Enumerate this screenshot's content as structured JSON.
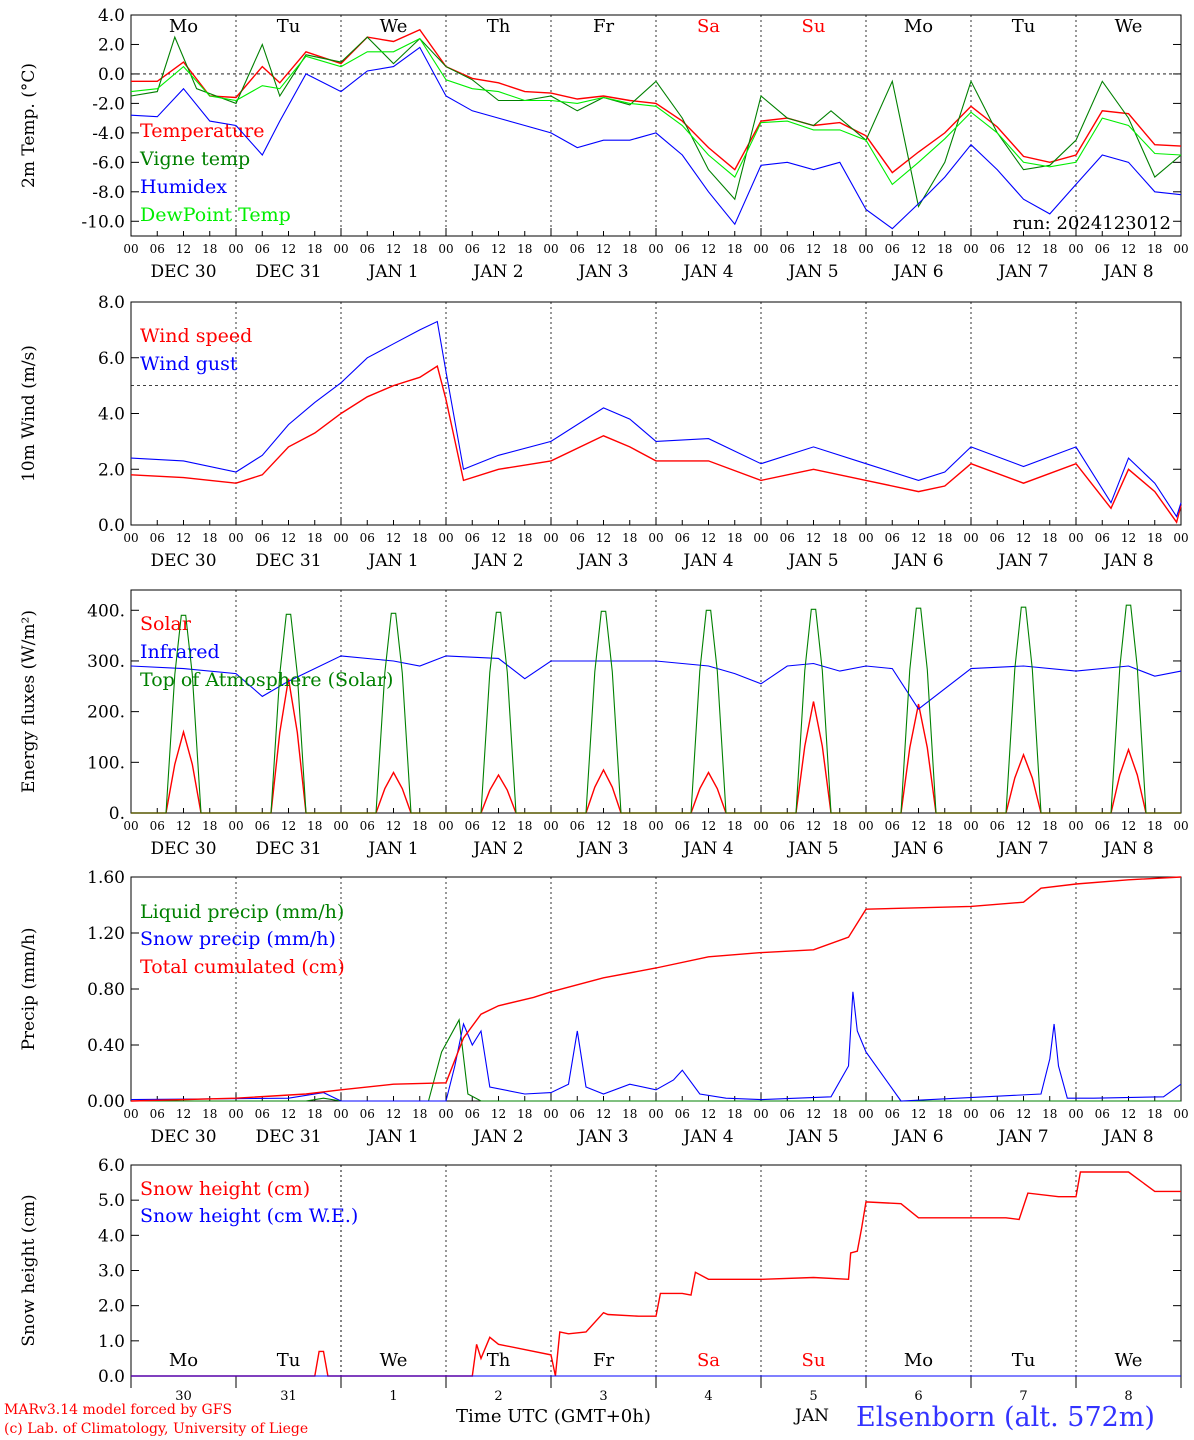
{
  "footer": {
    "model_line": "MARv3.14 model forced by GFS",
    "copyright_line": "(c) Lab. of Climatology, University of Liege",
    "xlabel": "Time UTC (GMT+0h)",
    "month": "JAN",
    "station": "Elsenborn (alt. 572m)"
  },
  "colors": {
    "red": "#ff0000",
    "green": "#008000",
    "blue": "#0000ff",
    "lightgreen": "#00ee00",
    "weekend": "#ff0000",
    "station": "#3333ff"
  },
  "chart_data": [
    {
      "type": "line",
      "ylabel": "2m Temp. (°C)",
      "ylim": [
        -11,
        4
      ],
      "yticks": [
        "4.0",
        "2.0",
        "0.0",
        "-2.0",
        "-4.0",
        "-6.0",
        "-8.0",
        "-10.0"
      ],
      "ytick_values": [
        4,
        2,
        0,
        -2,
        -4,
        -6,
        -8,
        -10
      ],
      "reference_line": 0,
      "x_unit": "hours since Dec 30 00 UTC",
      "xlim": [
        0,
        240
      ],
      "hour_ticks": [
        "00",
        "06",
        "12",
        "18"
      ],
      "date_labels": [
        "DEC 30",
        "DEC 31",
        "JAN 1",
        "JAN 2",
        "JAN 3",
        "JAN 4",
        "JAN 5",
        "JAN 6",
        "JAN 7",
        "JAN 8"
      ],
      "day_names": [
        "Mo",
        "Tu",
        "We",
        "Th",
        "Fr",
        "Sa",
        "Su",
        "Mo",
        "Tu",
        "We"
      ],
      "weekend_days": [
        5,
        6
      ],
      "annotation": "run: 2024123012",
      "series": [
        {
          "name": "Temperature",
          "color": "red",
          "x": [
            0,
            6,
            12,
            18,
            24,
            30,
            34,
            40,
            48,
            54,
            60,
            66,
            72,
            78,
            84,
            90,
            96,
            102,
            108,
            114,
            120,
            126,
            132,
            138,
            144,
            150,
            156,
            162,
            168,
            174,
            180,
            186,
            192,
            198,
            204,
            210,
            216,
            222,
            228,
            234,
            240
          ],
          "values": [
            -0.5,
            -0.5,
            0.8,
            -1.5,
            -1.6,
            0.5,
            -0.6,
            1.5,
            0.7,
            2.5,
            2.2,
            3.0,
            0.5,
            -0.3,
            -0.6,
            -1.2,
            -1.3,
            -1.7,
            -1.5,
            -1.8,
            -2.0,
            -3.2,
            -5.0,
            -6.5,
            -3.2,
            -3.0,
            -3.5,
            -3.3,
            -4.2,
            -6.7,
            -5.3,
            -4.0,
            -2.2,
            -3.6,
            -5.6,
            -6.0,
            -5.5,
            -2.5,
            -2.7,
            -4.8,
            -4.9
          ]
        },
        {
          "name": "Vigne temp",
          "color": "green",
          "x": [
            0,
            6,
            10,
            15,
            24,
            30,
            34,
            40,
            48,
            54,
            60,
            66,
            72,
            78,
            84,
            90,
            96,
            102,
            108,
            114,
            120,
            126,
            132,
            138,
            144,
            150,
            156,
            160,
            168,
            174,
            180,
            186,
            192,
            198,
            204,
            210,
            216,
            222,
            228,
            234,
            240
          ],
          "values": [
            -1.5,
            -1.2,
            2.5,
            -1.0,
            -2.0,
            2.0,
            -1.5,
            1.3,
            0.8,
            2.5,
            0.7,
            2.4,
            0.5,
            -0.4,
            -1.8,
            -1.8,
            -1.5,
            -2.5,
            -1.6,
            -2.1,
            -0.5,
            -3.0,
            -6.5,
            -8.5,
            -1.5,
            -3.0,
            -3.5,
            -2.5,
            -4.5,
            -0.5,
            -9.0,
            -6.0,
            -0.5,
            -4.0,
            -6.5,
            -6.2,
            -4.5,
            -0.5,
            -3.0,
            -7.0,
            -5.5
          ]
        },
        {
          "name": "Humidex",
          "color": "blue",
          "x": [
            0,
            6,
            12,
            18,
            24,
            30,
            34,
            40,
            48,
            54,
            60,
            66,
            72,
            78,
            84,
            90,
            96,
            102,
            108,
            114,
            120,
            126,
            132,
            138,
            144,
            150,
            156,
            162,
            168,
            174,
            180,
            186,
            192,
            198,
            204,
            210,
            216,
            222,
            228,
            234,
            240
          ],
          "values": [
            -2.8,
            -2.9,
            -1.0,
            -3.2,
            -3.5,
            -5.5,
            -3.2,
            0.0,
            -1.2,
            0.2,
            0.5,
            1.8,
            -1.5,
            -2.5,
            -3.0,
            -3.5,
            -4.0,
            -5.0,
            -4.5,
            -4.5,
            -4.0,
            -5.5,
            -8.0,
            -10.2,
            -6.2,
            -6.0,
            -6.5,
            -6.0,
            -9.2,
            -10.5,
            -8.8,
            -7.0,
            -4.8,
            -6.5,
            -8.5,
            -9.5,
            -7.5,
            -5.5,
            -6.0,
            -8.0,
            -8.2
          ]
        },
        {
          "name": "DewPoint Temp",
          "color": "lightgreen",
          "x": [
            0,
            6,
            12,
            18,
            24,
            30,
            34,
            40,
            48,
            54,
            60,
            66,
            72,
            78,
            84,
            90,
            96,
            102,
            108,
            114,
            120,
            126,
            132,
            138,
            144,
            150,
            156,
            162,
            168,
            174,
            180,
            186,
            192,
            198,
            204,
            210,
            216,
            222,
            228,
            234,
            240
          ],
          "values": [
            -1.2,
            -1.0,
            0.5,
            -1.5,
            -1.8,
            -0.8,
            -1.0,
            1.2,
            0.5,
            1.5,
            1.5,
            2.4,
            -0.4,
            -1.0,
            -1.2,
            -1.8,
            -1.8,
            -2.0,
            -1.6,
            -2.0,
            -2.2,
            -3.5,
            -5.5,
            -7.0,
            -3.3,
            -3.2,
            -3.8,
            -3.8,
            -4.5,
            -7.5,
            -6.0,
            -4.4,
            -2.6,
            -4.0,
            -6.0,
            -6.3,
            -6.0,
            -3.0,
            -3.5,
            -5.4,
            -5.5
          ]
        }
      ]
    },
    {
      "type": "line",
      "ylabel": "10m Wind (m/s)",
      "ylim": [
        0,
        8
      ],
      "yticks": [
        "8.0",
        "6.0",
        "4.0",
        "2.0",
        "0.0"
      ],
      "ytick_values": [
        8,
        6,
        4,
        2,
        0
      ],
      "reference_line": 5,
      "x_unit": "hours since Dec 30 00 UTC",
      "xlim": [
        0,
        240
      ],
      "hour_ticks": [
        "00",
        "06",
        "12",
        "18"
      ],
      "date_labels": [
        "DEC 30",
        "DEC 31",
        "JAN 1",
        "JAN 2",
        "JAN 3",
        "JAN 4",
        "JAN 5",
        "JAN 6",
        "JAN 7",
        "JAN 8"
      ],
      "series": [
        {
          "name": "Wind speed",
          "color": "red",
          "x": [
            0,
            12,
            24,
            30,
            36,
            42,
            48,
            54,
            60,
            66,
            70,
            72,
            76,
            84,
            96,
            108,
            114,
            120,
            132,
            144,
            156,
            168,
            180,
            186,
            192,
            204,
            216,
            224,
            228,
            234,
            239,
            240
          ],
          "values": [
            1.8,
            1.7,
            1.5,
            1.8,
            2.8,
            3.3,
            4.0,
            4.6,
            5.0,
            5.3,
            5.7,
            4.5,
            1.6,
            2.0,
            2.3,
            3.2,
            2.8,
            2.3,
            2.3,
            1.6,
            2.0,
            1.6,
            1.2,
            1.4,
            2.2,
            1.5,
            2.2,
            0.6,
            2.0,
            1.2,
            0.1,
            0.7
          ]
        },
        {
          "name": "Wind gust",
          "color": "blue",
          "x": [
            0,
            12,
            24,
            30,
            36,
            42,
            48,
            54,
            60,
            66,
            70,
            72,
            76,
            84,
            96,
            108,
            114,
            120,
            132,
            144,
            156,
            168,
            180,
            186,
            192,
            204,
            216,
            224,
            228,
            234,
            239,
            240
          ],
          "values": [
            2.4,
            2.3,
            1.9,
            2.5,
            3.6,
            4.4,
            5.1,
            6.0,
            6.5,
            7.0,
            7.3,
            5.5,
            2.0,
            2.5,
            3.0,
            4.2,
            3.8,
            3.0,
            3.1,
            2.2,
            2.8,
            2.2,
            1.6,
            1.9,
            2.8,
            2.1,
            2.8,
            0.8,
            2.4,
            1.5,
            0.3,
            0.8
          ]
        }
      ]
    },
    {
      "type": "line",
      "ylabel": "Energy fluxes (W/m²)",
      "ylim": [
        0,
        440
      ],
      "yticks": [
        "400.",
        "300.",
        "200.",
        "100.",
        "0."
      ],
      "ytick_values": [
        400,
        300,
        200,
        100,
        0
      ],
      "x_unit": "hours since Dec 30 00 UTC",
      "xlim": [
        0,
        240
      ],
      "hour_ticks": [
        "00",
        "06",
        "12",
        "18"
      ],
      "date_labels": [
        "DEC 30",
        "DEC 31",
        "JAN 1",
        "JAN 2",
        "JAN 3",
        "JAN 4",
        "JAN 5",
        "JAN 6",
        "JAN 7",
        "JAN 8"
      ],
      "daily_peaks": {
        "toa_solar": [
          390,
          392,
          394,
          396,
          398,
          400,
          402,
          404,
          406,
          410
        ],
        "solar": [
          160,
          265,
          80,
          75,
          85,
          80,
          220,
          215,
          115,
          125
        ]
      },
      "series": [
        {
          "name": "Solar",
          "color": "red"
        },
        {
          "name": "Infrared",
          "color": "blue",
          "x": [
            0,
            12,
            24,
            30,
            36,
            48,
            60,
            66,
            72,
            84,
            90,
            96,
            108,
            120,
            132,
            138,
            144,
            150,
            156,
            162,
            168,
            174,
            180,
            192,
            204,
            216,
            228,
            234,
            240
          ],
          "values": [
            290,
            285,
            275,
            230,
            260,
            310,
            300,
            290,
            310,
            305,
            265,
            300,
            300,
            300,
            290,
            275,
            255,
            290,
            295,
            280,
            290,
            285,
            205,
            285,
            290,
            280,
            290,
            270,
            280
          ]
        },
        {
          "name": "Top of Atmosphere (Solar)",
          "color": "green"
        }
      ]
    },
    {
      "type": "line",
      "ylabel": "Precip (mm/h)",
      "ylim": [
        0,
        1.6
      ],
      "yticks": [
        "1.60",
        "1.20",
        "0.80",
        "0.40",
        "0.00"
      ],
      "ytick_values": [
        1.6,
        1.2,
        0.8,
        0.4,
        0.0
      ],
      "x_unit": "hours since Dec 30 00 UTC",
      "xlim": [
        0,
        240
      ],
      "hour_ticks": [
        "00",
        "06",
        "12",
        "18"
      ],
      "date_labels": [
        "DEC 30",
        "DEC 31",
        "JAN 1",
        "JAN 2",
        "JAN 3",
        "JAN 4",
        "JAN 5",
        "JAN 6",
        "JAN 7",
        "JAN 8"
      ],
      "series": [
        {
          "name": "Liquid precip (mm/h)",
          "color": "green",
          "x": [
            0,
            40,
            44,
            48,
            68,
            71,
            75,
            77,
            80,
            84,
            240
          ],
          "values": [
            0.0,
            0.0,
            0.02,
            0.0,
            0.0,
            0.35,
            0.58,
            0.05,
            0.0,
            0.0,
            0.0
          ]
        },
        {
          "name": "Snow precip (mm/h)",
          "color": "blue",
          "x": [
            0,
            36,
            44,
            48,
            64,
            72,
            74,
            76,
            78,
            80,
            82,
            90,
            96,
            100,
            102,
            104,
            108,
            114,
            120,
            124,
            126,
            130,
            136,
            144,
            160,
            164,
            165,
            166,
            168,
            176,
            208,
            210,
            211,
            212,
            214,
            220,
            236,
            240
          ],
          "values": [
            0.01,
            0.02,
            0.06,
            0.0,
            0.0,
            0.0,
            0.25,
            0.55,
            0.4,
            0.5,
            0.1,
            0.05,
            0.06,
            0.12,
            0.5,
            0.1,
            0.05,
            0.12,
            0.08,
            0.15,
            0.22,
            0.05,
            0.02,
            0.01,
            0.03,
            0.25,
            0.78,
            0.5,
            0.35,
            0.0,
            0.05,
            0.3,
            0.55,
            0.25,
            0.02,
            0.02,
            0.03,
            0.12
          ]
        },
        {
          "name": "Total cumulated (cm)",
          "color": "red",
          "x": [
            0,
            24,
            40,
            48,
            60,
            72,
            76,
            80,
            84,
            92,
            96,
            108,
            120,
            132,
            144,
            156,
            164,
            168,
            180,
            192,
            204,
            208,
            216,
            228,
            240
          ],
          "values": [
            0.0,
            0.02,
            0.05,
            0.08,
            0.12,
            0.13,
            0.45,
            0.62,
            0.68,
            0.74,
            0.78,
            0.88,
            0.95,
            1.03,
            1.06,
            1.08,
            1.17,
            1.37,
            1.38,
            1.39,
            1.42,
            1.52,
            1.55,
            1.58,
            1.6
          ]
        }
      ]
    },
    {
      "type": "line",
      "ylabel": "Snow height (cm)",
      "ylim": [
        0,
        6
      ],
      "yticks": [
        "6.0",
        "5.0",
        "4.0",
        "3.0",
        "2.0",
        "1.0",
        "0.0"
      ],
      "ytick_values": [
        6,
        5,
        4,
        3,
        2,
        1,
        0
      ],
      "x_unit": "hours since Dec 30 00 UTC",
      "xlim": [
        0,
        240
      ],
      "day_marks": [
        "30",
        "31",
        "1",
        "2",
        "3",
        "4",
        "5",
        "6",
        "7",
        "8"
      ],
      "day_names": [
        "Mo",
        "Tu",
        "We",
        "Th",
        "Fr",
        "Sa",
        "Su",
        "Mo",
        "Tu",
        "We"
      ],
      "weekend_days": [
        5,
        6
      ],
      "series": [
        {
          "name": "Snow height (cm)",
          "color": "red",
          "x": [
            0,
            42,
            43,
            44,
            45,
            78,
            79,
            80,
            82,
            84,
            96,
            97,
            98,
            100,
            104,
            108,
            109,
            116,
            120,
            121,
            126,
            128,
            129,
            132,
            144,
            156,
            164,
            164.5,
            166,
            167,
            168,
            176,
            180,
            192,
            200,
            203,
            205,
            212,
            216,
            217,
            228,
            234,
            240
          ],
          "values": [
            0,
            0,
            0.7,
            0.7,
            0,
            0,
            0.9,
            0.5,
            1.1,
            0.9,
            0.6,
            0,
            1.25,
            1.2,
            1.25,
            1.8,
            1.75,
            1.7,
            1.7,
            2.35,
            2.35,
            2.3,
            2.95,
            2.75,
            2.75,
            2.8,
            2.75,
            3.5,
            3.55,
            4.2,
            4.95,
            4.9,
            4.5,
            4.5,
            4.5,
            4.45,
            5.2,
            5.1,
            5.1,
            5.8,
            5.8,
            5.25,
            5.25
          ]
        },
        {
          "name": "Snow height (cm W.E.)",
          "color": "blue"
        }
      ]
    }
  ]
}
